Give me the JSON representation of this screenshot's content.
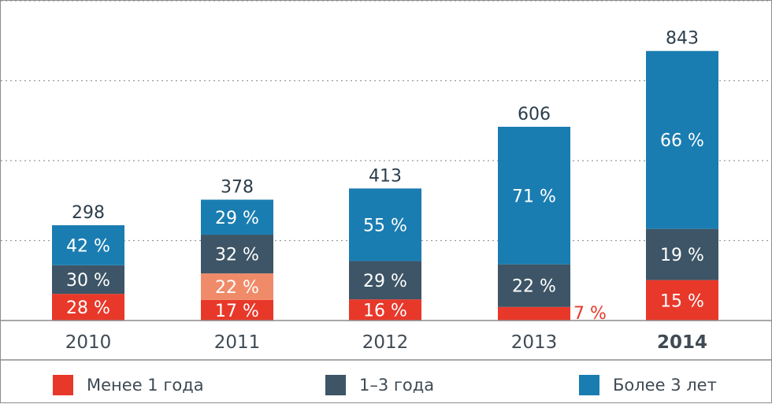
{
  "chart_data": {
    "type": "bar",
    "stacked": true,
    "categories": [
      "2010",
      "2011",
      "2012",
      "2013",
      "2014"
    ],
    "totals": [
      298,
      378,
      413,
      606,
      843
    ],
    "series": [
      {
        "name": "Менее 1 года",
        "color": "#e8382a",
        "percents": [
          28,
          17,
          16,
          7,
          15
        ],
        "labels": [
          "28 %",
          "17 %",
          "16 %",
          "7 %",
          "15 %"
        ]
      },
      {
        "name": "",
        "color": "#f08b6a",
        "percents": [
          0,
          22,
          0,
          0,
          0
        ],
        "labels": [
          "",
          "22 %",
          "",
          "",
          ""
        ]
      },
      {
        "name": "1–3 года",
        "color": "#3d5566",
        "percents": [
          30,
          32,
          29,
          22,
          19
        ],
        "labels": [
          "30 %",
          "32 %",
          "29 %",
          "22 %",
          "19 %"
        ]
      },
      {
        "name": "Более 3 лет",
        "color": "#1a7db1",
        "percents": [
          42,
          29,
          55,
          71,
          66
        ],
        "labels": [
          "42 %",
          "29 %",
          "55 %",
          "71 %",
          "66 %"
        ]
      }
    ],
    "bold_category": "2014",
    "ylim": [
      0,
      1000
    ],
    "grid": true
  },
  "legend": [
    {
      "label": "Менее 1 года",
      "color": "#e8382a"
    },
    {
      "label": "1–3 года",
      "color": "#3d5566"
    },
    {
      "label": "Более 3 лет",
      "color": "#1a7db1"
    }
  ],
  "colors": {
    "grid": "#999999",
    "axis_text": "#3f4a54",
    "total_text": "#2c3e4c",
    "outside_label": "#e8382a"
  }
}
